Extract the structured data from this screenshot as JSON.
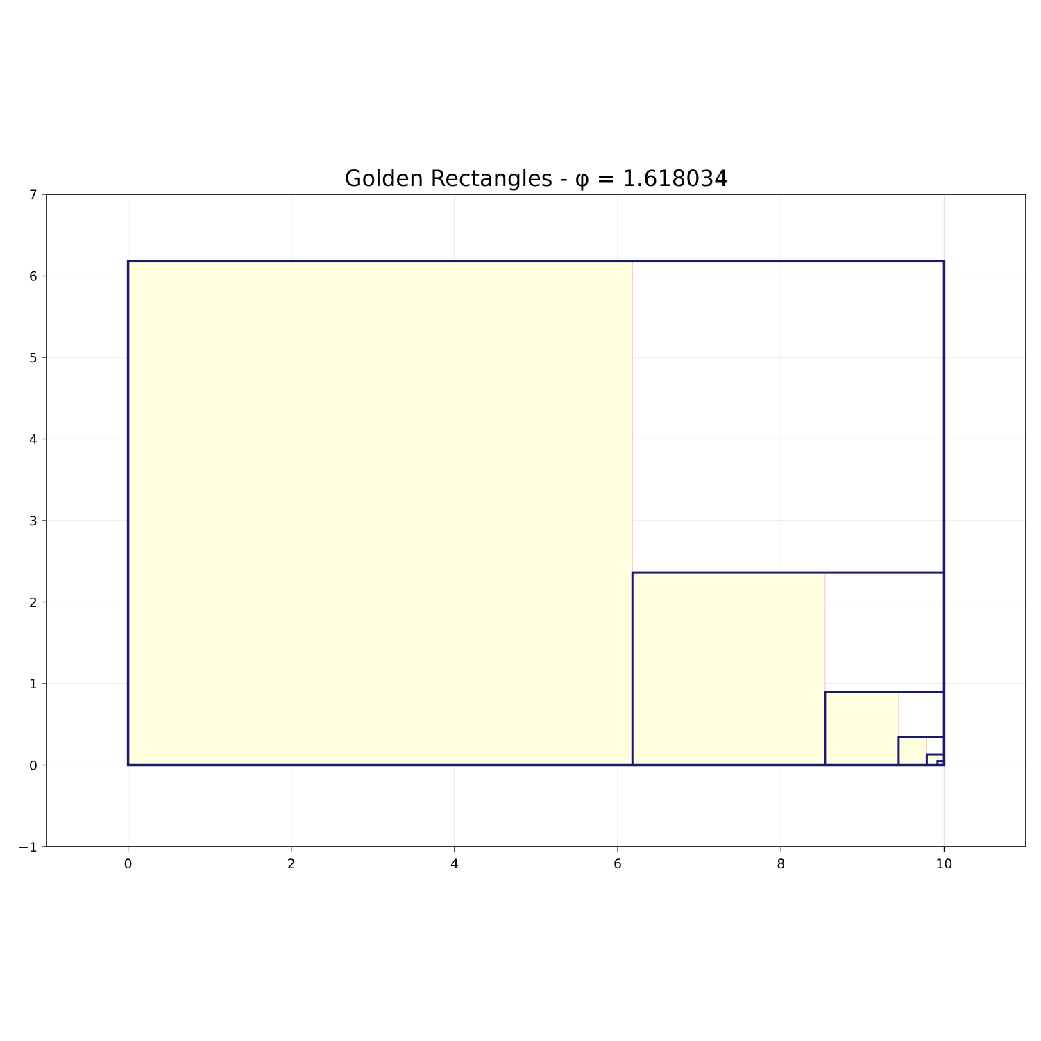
{
  "chart_data": {
    "type": "area",
    "title": "Golden Rectangles - φ = 1.618034",
    "xlabel": "",
    "ylabel": "",
    "xlim": [
      -1,
      11
    ],
    "ylim": [
      -1,
      7
    ],
    "xticks": [
      0,
      2,
      4,
      6,
      8,
      10
    ],
    "yticks": [
      -1,
      0,
      1,
      2,
      3,
      4,
      5,
      6,
      7
    ],
    "xtick_labels": [
      "0",
      "2",
      "4",
      "6",
      "8",
      "10"
    ],
    "ytick_labels": [
      "−1",
      "0",
      "1",
      "2",
      "3",
      "4",
      "5",
      "6",
      "7"
    ],
    "grid": true,
    "legend": "none",
    "rectangles": [
      {
        "x": 0,
        "y": 0,
        "width": 10,
        "height": 6.18034,
        "square_side": 6.18034
      },
      {
        "x": 6.18034,
        "y": 0,
        "width": 3.81966,
        "height": 2.36068,
        "square_side": 2.36068
      },
      {
        "x": 8.54102,
        "y": 0,
        "width": 1.45898,
        "height": 0.9017,
        "square_side": 0.9017
      },
      {
        "x": 9.44272,
        "y": 0,
        "width": 0.55728,
        "height": 0.34442,
        "square_side": 0.34442
      },
      {
        "x": 9.78714,
        "y": 0,
        "width": 0.21286,
        "height": 0.13156,
        "square_side": 0.13156
      },
      {
        "x": 9.9187,
        "y": 0,
        "width": 0.0813,
        "height": 0.05025,
        "square_side": 0.05025
      }
    ],
    "colors": {
      "outline": "#191970",
      "square_fill": "#ffffe0",
      "square_edge": "#ffc0c0",
      "grid": "#b0b0b0"
    }
  }
}
